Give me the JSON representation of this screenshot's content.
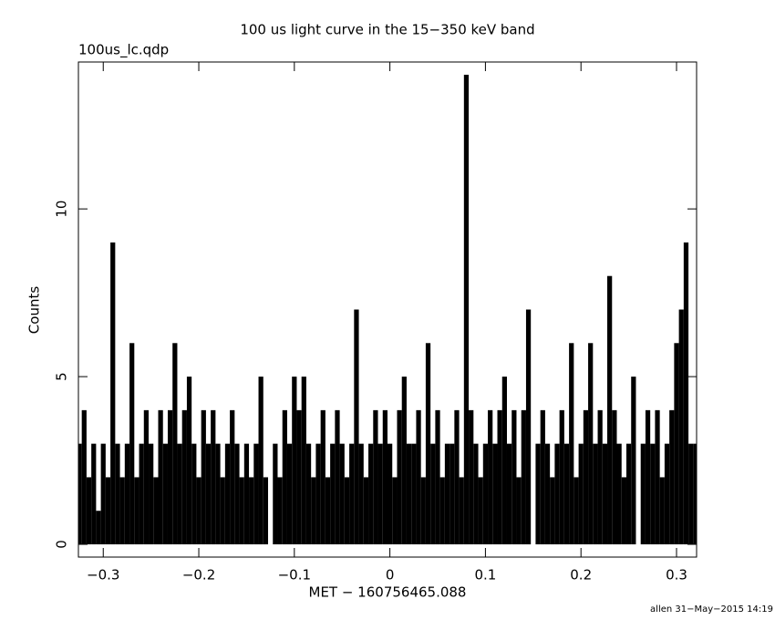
{
  "chart_data": {
    "type": "bar",
    "title": "100 us light curve in the 15−350 keV band",
    "subtitle": "100us_lc.qdp",
    "x_label": "MET − 160756465.088",
    "y_label": "Counts",
    "footer": "allen 31−May−2015 14:19",
    "color": "#000000",
    "xlim": [
      -0.326,
      0.321
    ],
    "ylim": [
      -0.38,
      14.38
    ],
    "xticks": [
      {
        "value": -0.3,
        "label": "−0.3"
      },
      {
        "value": -0.2,
        "label": "−0.2"
      },
      {
        "value": -0.1,
        "label": "−0.1"
      },
      0,
      0.1,
      0.2,
      0.3
    ],
    "yticks": [
      0,
      5,
      10
    ],
    "x": [
      -0.325,
      -0.32,
      -0.315,
      -0.31,
      -0.305,
      -0.3,
      -0.295,
      -0.29,
      -0.285,
      -0.28,
      -0.275,
      -0.27,
      -0.265,
      -0.26,
      -0.255,
      -0.25,
      -0.245,
      -0.24,
      -0.235,
      -0.23,
      -0.225,
      -0.22,
      -0.215,
      -0.21,
      -0.205,
      -0.2,
      -0.195,
      -0.19,
      -0.185,
      -0.18,
      -0.175,
      -0.17,
      -0.165,
      -0.16,
      -0.155,
      -0.15,
      -0.145,
      -0.14,
      -0.135,
      -0.13,
      -0.125,
      -0.12,
      -0.115,
      -0.11,
      -0.105,
      -0.1,
      -0.095,
      -0.09,
      -0.085,
      -0.08,
      -0.075,
      -0.07,
      -0.065,
      -0.06,
      -0.055,
      -0.05,
      -0.045,
      -0.04,
      -0.035,
      -0.03,
      -0.025,
      -0.02,
      -0.015,
      -0.01,
      -0.005,
      0,
      0.005,
      0.01,
      0.015,
      0.02,
      0.025,
      0.03,
      0.035,
      0.04,
      0.045,
      0.05,
      0.055,
      0.06,
      0.065,
      0.07,
      0.075,
      0.08,
      0.085,
      0.09,
      0.095,
      0.1,
      0.105,
      0.11,
      0.115,
      0.12,
      0.125,
      0.13,
      0.135,
      0.14,
      0.145,
      0.15,
      0.155,
      0.16,
      0.165,
      0.17,
      0.175,
      0.18,
      0.185,
      0.19,
      0.195,
      0.2,
      0.205,
      0.21,
      0.215,
      0.22,
      0.225,
      0.23,
      0.235,
      0.24,
      0.245,
      0.25,
      0.255,
      0.26,
      0.265,
      0.27,
      0.275,
      0.28,
      0.285,
      0.29,
      0.295,
      0.3,
      0.305,
      0.31,
      0.315,
      0.32
    ],
    "values": [
      3,
      4,
      2,
      3,
      1,
      3,
      2,
      9,
      3,
      2,
      3,
      6,
      2,
      3,
      4,
      3,
      2,
      4,
      3,
      4,
      6,
      3,
      4,
      5,
      3,
      2,
      4,
      3,
      4,
      3,
      2,
      3,
      4,
      3,
      2,
      3,
      2,
      3,
      5,
      2,
      0,
      3,
      2,
      4,
      3,
      5,
      4,
      5,
      3,
      2,
      3,
      4,
      2,
      3,
      4,
      3,
      2,
      3,
      7,
      3,
      2,
      3,
      4,
      3,
      4,
      3,
      2,
      4,
      5,
      3,
      3,
      4,
      2,
      6,
      3,
      4,
      2,
      3,
      3,
      4,
      2,
      14,
      4,
      3,
      2,
      3,
      4,
      3,
      4,
      5,
      3,
      4,
      2,
      4,
      7,
      0,
      3,
      4,
      3,
      2,
      3,
      4,
      3,
      6,
      2,
      3,
      4,
      6,
      3,
      4,
      3,
      8,
      4,
      3,
      2,
      3,
      5,
      0,
      3,
      4,
      3,
      4,
      2,
      3,
      4,
      6,
      7,
      9,
      3,
      3
    ]
  }
}
